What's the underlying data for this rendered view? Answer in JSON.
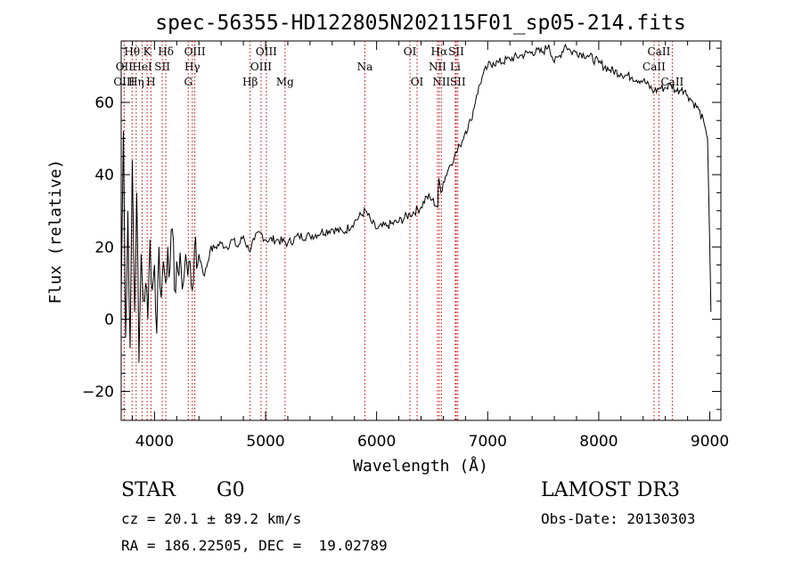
{
  "chart_data": {
    "type": "line",
    "title": "spec-56355-HD122805N202115F01_sp05-214.fits",
    "xlabel": "Wavelength (Å)",
    "ylabel": "Flux (relative)",
    "xlim": [
      3700,
      9100
    ],
    "ylim": [
      -28,
      77
    ],
    "x_ticks": [
      4000,
      5000,
      6000,
      7000,
      8000,
      9000
    ],
    "y_ticks": [
      -20,
      0,
      20,
      40,
      60
    ],
    "series": [
      {
        "name": "flux",
        "x": [
          3700,
          3720,
          3740,
          3760,
          3780,
          3800,
          3820,
          3840,
          3860,
          3880,
          3900,
          3920,
          3940,
          3960,
          3980,
          4000,
          4020,
          4040,
          4060,
          4080,
          4100,
          4120,
          4140,
          4160,
          4180,
          4200,
          4220,
          4240,
          4260,
          4280,
          4300,
          4320,
          4340,
          4360,
          4380,
          4400,
          4450,
          4500,
          4550,
          4600,
          4650,
          4700,
          4750,
          4800,
          4850,
          4900,
          4950,
          5000,
          5100,
          5200,
          5300,
          5400,
          5500,
          5600,
          5700,
          5800,
          5900,
          5950,
          6000,
          6100,
          6200,
          6300,
          6400,
          6450,
          6500,
          6550,
          6560,
          6580,
          6600,
          6650,
          6700,
          6750,
          6800,
          6850,
          6900,
          6950,
          7000,
          7050,
          7100,
          7200,
          7300,
          7400,
          7500,
          7550,
          7600,
          7650,
          7700,
          7750,
          7800,
          7900,
          8000,
          8100,
          8200,
          8300,
          8400,
          8500,
          8550,
          8600,
          8650,
          8700,
          8750,
          8800,
          8850,
          8900,
          8950,
          8980,
          9000,
          9010
        ],
        "values": [
          5,
          52,
          -5,
          30,
          -8,
          44,
          2,
          35,
          -12,
          18,
          5,
          10,
          0,
          22,
          8,
          15,
          -4,
          20,
          6,
          16,
          10,
          20,
          14,
          25,
          8,
          16,
          12,
          14,
          10,
          18,
          12,
          16,
          8,
          20,
          14,
          18,
          12,
          19,
          20,
          21,
          20,
          22,
          20,
          23,
          19,
          22,
          24,
          22,
          22,
          21,
          23,
          23,
          24,
          25,
          24,
          27,
          30,
          27,
          25,
          26,
          27,
          29,
          31,
          34,
          33,
          31,
          39,
          35,
          38,
          42,
          45,
          48,
          52,
          55,
          62,
          67,
          70,
          71,
          71,
          72,
          73,
          74,
          74,
          76,
          71,
          73,
          76,
          74,
          74,
          73,
          71,
          69,
          68,
          67,
          66,
          63,
          64,
          64,
          65,
          63,
          64,
          62,
          60,
          58,
          54,
          50,
          20,
          2
        ]
      }
    ],
    "lines": [
      {
        "label": "Hθ",
        "x": 3798,
        "row": 0
      },
      {
        "label": "OII",
        "x": 3727,
        "row": 1
      },
      {
        "label": "OIII",
        "x": 3727,
        "row": 2
      },
      {
        "label": "K",
        "x": 3934,
        "row": 0
      },
      {
        "label": "HeI",
        "x": 3889,
        "row": 1
      },
      {
        "label": "Hη",
        "x": 3835,
        "row": 2
      },
      {
        "label": "SII",
        "x": 4070,
        "row": 1
      },
      {
        "label": "H",
        "x": 3968,
        "row": 2
      },
      {
        "label": "Hδ",
        "x": 4102,
        "row": 0
      },
      {
        "label": "OIII",
        "x": 4363,
        "row": 0
      },
      {
        "label": "Hγ",
        "x": 4340,
        "row": 1
      },
      {
        "label": "G",
        "x": 4304,
        "row": 2
      },
      {
        "label": "OIII",
        "x": 5007,
        "row": 0
      },
      {
        "label": "OIII",
        "x": 4959,
        "row": 1
      },
      {
        "label": "Hβ",
        "x": 4861,
        "row": 2
      },
      {
        "label": "Mg",
        "x": 5175,
        "row": 2
      },
      {
        "label": "Na",
        "x": 5894,
        "row": 1
      },
      {
        "label": "OI",
        "x": 6300,
        "row": 0
      },
      {
        "label": "OI",
        "x": 6364,
        "row": 2
      },
      {
        "label": "Hα",
        "x": 6563,
        "row": 0
      },
      {
        "label": "NII",
        "x": 6548,
        "row": 1
      },
      {
        "label": "NII",
        "x": 6583,
        "row": 2
      },
      {
        "label": "SII",
        "x": 6717,
        "row": 0
      },
      {
        "label": "Li",
        "x": 6708,
        "row": 1
      },
      {
        "label": "SII",
        "x": 6731,
        "row": 2
      },
      {
        "label": "CaII",
        "x": 8542,
        "row": 0
      },
      {
        "label": "CaII",
        "x": 8498,
        "row": 1
      },
      {
        "label": "CaII",
        "x": 8662,
        "row": 2
      }
    ]
  },
  "info": {
    "object_type": "STAR",
    "subclass": "G0",
    "survey": "LAMOST DR3",
    "cz": "cz = 20.1 ± 89.2 km/s",
    "obs_date": "Obs-Date: 20130303",
    "coords": "RA = 186.22505, DEC =  19.02789"
  }
}
